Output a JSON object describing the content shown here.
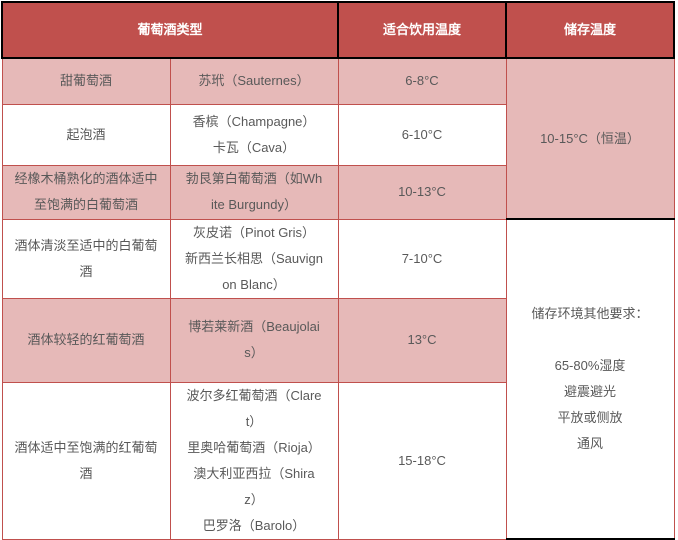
{
  "table": {
    "header": {
      "wine_type": "葡萄酒类型",
      "serving_temp": "适合饮用温度",
      "storage_temp": "储存温度"
    },
    "rows": [
      {
        "type": "甜葡萄酒",
        "examples": "苏玳（Sauternes）",
        "serving_temp": "6-8°C"
      },
      {
        "type": "起泡酒",
        "examples": "香槟（Champagne）\n卡瓦（Cava）",
        "serving_temp": "6-10°C"
      },
      {
        "type": "经橡木桶熟化的酒体适中至饱满的白葡萄酒",
        "examples": "勃艮第白葡萄酒（如White Burgundy）",
        "serving_temp": "10-13°C"
      },
      {
        "type": "酒体清淡至适中的白葡萄酒",
        "examples": "灰皮诺（Pinot Gris）\n新西兰长相思（Sauvignon Blanc）",
        "serving_temp": "7-10°C"
      },
      {
        "type": "酒体较轻的红葡萄酒",
        "examples": "博若莱新酒（Beaujolais）",
        "serving_temp": "13°C"
      },
      {
        "type": "酒体适中至饱满的红葡萄酒",
        "examples": "波尔多红葡萄酒（Claret）\n里奥哈葡萄酒（Rioja）\n澳大利亚西拉（Shiraz）\n巴罗洛（Barolo）",
        "serving_temp": "15-18°C"
      }
    ],
    "storage": {
      "temp": "10-15°C（恒温）",
      "other": "储存环境其他要求：\n\n65-80%湿度\n避震避光\n平放或侧放\n通风"
    }
  },
  "colors": {
    "header_bg": "#c0504d",
    "alt_row_bg": "#e6b9b8",
    "border_red": "#c0504d",
    "border_black": "#000000",
    "body_text": "#595959"
  }
}
